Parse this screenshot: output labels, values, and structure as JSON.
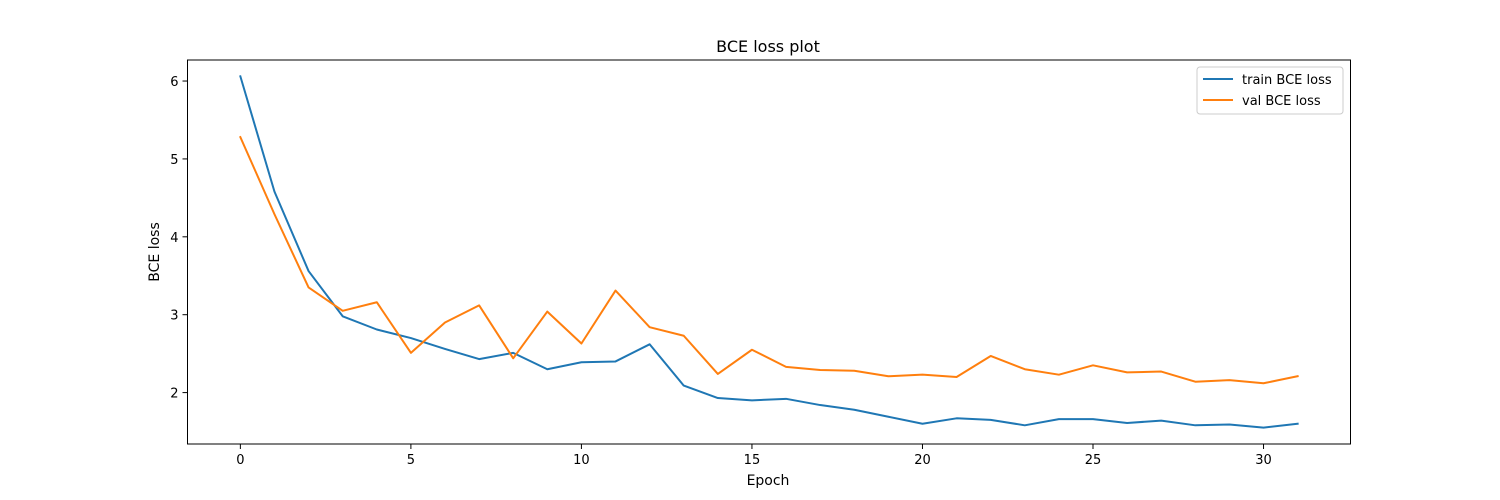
{
  "chart_data": {
    "type": "line",
    "title": "BCE loss plot",
    "xlabel": "Epoch",
    "ylabel": "BCE loss",
    "x": [
      0,
      1,
      2,
      3,
      4,
      5,
      6,
      7,
      8,
      9,
      10,
      11,
      12,
      13,
      14,
      15,
      16,
      17,
      18,
      19,
      20,
      21,
      22,
      23,
      24,
      25,
      26,
      27,
      28,
      29,
      30,
      31
    ],
    "xlim": [
      -1.55,
      32.55
    ],
    "ylim": [
      1.34,
      6.27
    ],
    "xticks": [
      0,
      5,
      10,
      15,
      20,
      25,
      30
    ],
    "xtick_labels": [
      "0",
      "5",
      "10",
      "15",
      "20",
      "25",
      "30"
    ],
    "yticks": [
      2,
      3,
      4,
      5,
      6
    ],
    "ytick_labels": [
      "2",
      "3",
      "4",
      "5",
      "6"
    ],
    "grid": false,
    "legend_position": "top-right",
    "series": [
      {
        "name": "train BCE loss",
        "color": "#1f77b4",
        "values": [
          6.06,
          4.58,
          3.56,
          2.98,
          2.81,
          2.7,
          2.56,
          2.43,
          2.51,
          2.3,
          2.39,
          2.4,
          2.62,
          2.09,
          1.93,
          1.9,
          1.92,
          1.84,
          1.78,
          1.69,
          1.6,
          1.67,
          1.65,
          1.58,
          1.66,
          1.66,
          1.61,
          1.64,
          1.58,
          1.59,
          1.55,
          1.6
        ]
      },
      {
        "name": "val BCE loss",
        "color": "#ff7f0e",
        "values": [
          5.28,
          4.29,
          3.35,
          3.05,
          3.16,
          2.51,
          2.9,
          3.12,
          2.44,
          3.04,
          2.63,
          3.31,
          2.84,
          2.73,
          2.24,
          2.55,
          2.33,
          2.29,
          2.28,
          2.21,
          2.23,
          2.2,
          2.47,
          2.3,
          2.23,
          2.35,
          2.26,
          2.27,
          2.14,
          2.16,
          2.12,
          2.21
        ]
      }
    ]
  }
}
